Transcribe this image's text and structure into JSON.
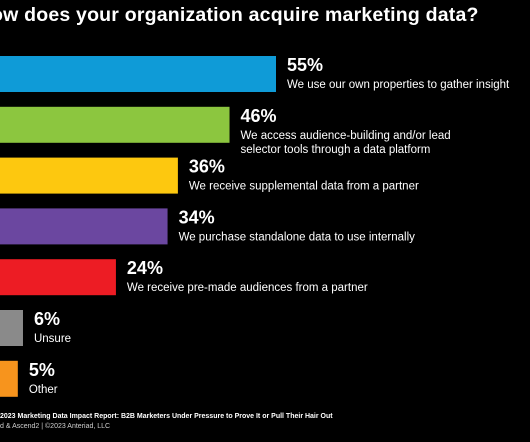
{
  "title": "ow does your organization acquire marketing data?",
  "chart_data": {
    "type": "bar",
    "orientation": "horizontal",
    "title": "ow does your organization acquire marketing data?",
    "categories": [
      "We use our own properties to gather insight",
      "We access audience-building and/or lead selector tools through a data platform",
      "We receive supplemental data from a partner",
      "We purchase standalone data to use internally",
      "We receive pre-made audiences from a partner",
      "Unsure",
      "Other"
    ],
    "category_lines": [
      [
        "We use our own properties to gather insight"
      ],
      [
        "We access audience-building and/or lead",
        "selector tools through a data platform"
      ],
      [
        "We receive supplemental data from a partner"
      ],
      [
        "We purchase standalone data to use internally"
      ],
      [
        "We receive pre-made audiences from a partner"
      ],
      [
        "Unsure"
      ],
      [
        "Other"
      ]
    ],
    "values": [
      55,
      46,
      36,
      34,
      24,
      6,
      5
    ],
    "value_labels": [
      "55%",
      "46%",
      "36%",
      "34%",
      "24%",
      "6%",
      "5%"
    ],
    "colors": [
      "#0f9bd7",
      "#8cc63f",
      "#fdc80f",
      "#6b47a0",
      "#ed1c24",
      "#8a8a8a",
      "#f7941d"
    ],
    "xlim": [
      0,
      60
    ],
    "grid": false,
    "legend": "none"
  },
  "footer": {
    "line1": "2023 Marketing Data Impact Report: B2B Marketers Under Pressure to Prove It or Pull Their Hair Out",
    "line2": "d & Ascend2 | ©2023 Anteriad, LLC"
  }
}
